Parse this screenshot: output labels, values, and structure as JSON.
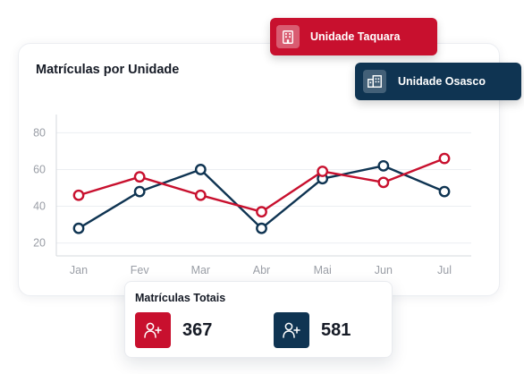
{
  "card": {
    "title": "Matrículas por Unidade"
  },
  "legend": {
    "taquara_label": "Unidade Taquara",
    "osasco_label": "Unidade Osasco",
    "taquara_icon": "building-icon",
    "osasco_icon": "office-building-icon"
  },
  "totals": {
    "title": "Matrículas Totais",
    "taquara_value": "367",
    "osasco_value": "581",
    "icon": "add-user-icon"
  },
  "colors": {
    "taquara": "#c8102e",
    "osasco": "#0f3452",
    "grid": "#eceef2",
    "axis": "#d5d8de",
    "tick_text": "#9a9ea6"
  },
  "chart_data": {
    "type": "line",
    "categories": [
      "Jan",
      "Fev",
      "Mar",
      "Abr",
      "Mai",
      "Jun",
      "Jul"
    ],
    "series": [
      {
        "name": "Unidade Taquara",
        "color": "#c8102e",
        "values": [
          46,
          56,
          46,
          37,
          59,
          53,
          66
        ]
      },
      {
        "name": "Unidade Osasco",
        "color": "#0f3452",
        "values": [
          28,
          48,
          60,
          28,
          55,
          62,
          48
        ]
      }
    ],
    "yticks": [
      20,
      40,
      60,
      80
    ],
    "ylim": [
      13,
      87
    ],
    "grid": true,
    "legend": "top-right"
  }
}
